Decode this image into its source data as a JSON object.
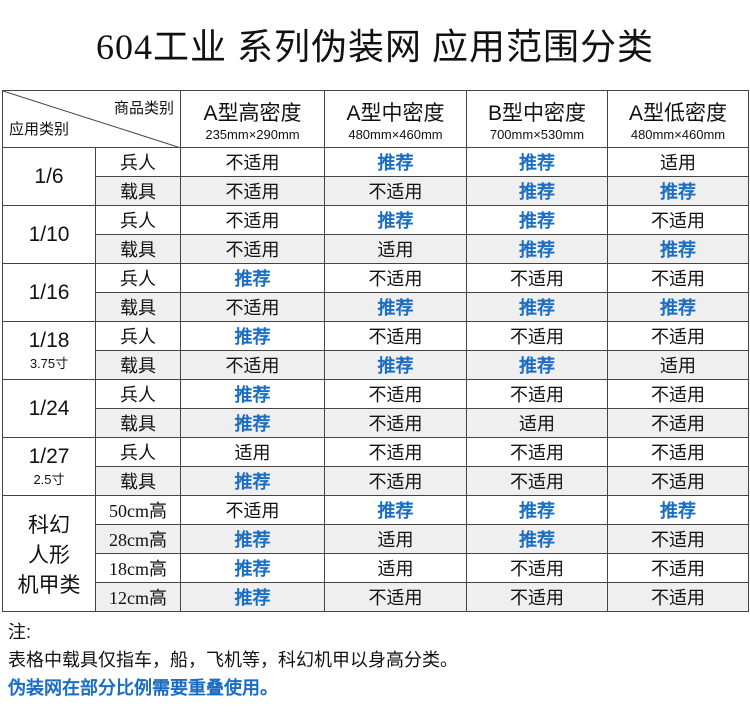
{
  "header": {
    "title": "604工业  系列伪装网  应用范围分类"
  },
  "table": {
    "corner_top": "商品类别",
    "corner_bottom": "应用类别",
    "columns": [
      {
        "name": "A型高密度",
        "size": "235mm×290mm"
      },
      {
        "name": "A型中密度",
        "size": "480mm×460mm"
      },
      {
        "name": "B型中密度",
        "size": "700mm×530mm"
      },
      {
        "name": "A型低密度",
        "size": "480mm×460mm"
      }
    ],
    "groups": [
      {
        "label": [
          "1/6"
        ],
        "rows": [
          {
            "sub": "兵人",
            "cells": [
              {
                "text": "不适用",
                "highlight": false
              },
              {
                "text": "推荐",
                "highlight": true
              },
              {
                "text": "推荐",
                "highlight": true
              },
              {
                "text": "适用",
                "highlight": false
              }
            ]
          },
          {
            "sub": "载具",
            "cells": [
              {
                "text": "不适用",
                "highlight": false
              },
              {
                "text": "不适用",
                "highlight": false
              },
              {
                "text": "推荐",
                "highlight": true
              },
              {
                "text": "推荐",
                "highlight": true
              }
            ]
          }
        ]
      },
      {
        "label": [
          "1/10"
        ],
        "rows": [
          {
            "sub": "兵人",
            "cells": [
              {
                "text": "不适用",
                "highlight": false
              },
              {
                "text": "推荐",
                "highlight": true
              },
              {
                "text": "推荐",
                "highlight": true
              },
              {
                "text": "不适用",
                "highlight": false
              }
            ]
          },
          {
            "sub": "载具",
            "cells": [
              {
                "text": "不适用",
                "highlight": false
              },
              {
                "text": "适用",
                "highlight": false
              },
              {
                "text": "推荐",
                "highlight": true
              },
              {
                "text": "推荐",
                "highlight": true
              }
            ]
          }
        ]
      },
      {
        "label": [
          "1/16"
        ],
        "rows": [
          {
            "sub": "兵人",
            "cells": [
              {
                "text": "推荐",
                "highlight": true
              },
              {
                "text": "不适用",
                "highlight": false
              },
              {
                "text": "不适用",
                "highlight": false
              },
              {
                "text": "不适用",
                "highlight": false
              }
            ]
          },
          {
            "sub": "载具",
            "cells": [
              {
                "text": "不适用",
                "highlight": false
              },
              {
                "text": "推荐",
                "highlight": true
              },
              {
                "text": "推荐",
                "highlight": true
              },
              {
                "text": "推荐",
                "highlight": true
              }
            ]
          }
        ]
      },
      {
        "label": [
          "1/18"
        ],
        "sublabel": "3.75寸",
        "rows": [
          {
            "sub": "兵人",
            "cells": [
              {
                "text": "推荐",
                "highlight": true
              },
              {
                "text": "不适用",
                "highlight": false
              },
              {
                "text": "不适用",
                "highlight": false
              },
              {
                "text": "不适用",
                "highlight": false
              }
            ]
          },
          {
            "sub": "载具",
            "cells": [
              {
                "text": "不适用",
                "highlight": false
              },
              {
                "text": "推荐",
                "highlight": true
              },
              {
                "text": "推荐",
                "highlight": true
              },
              {
                "text": "适用",
                "highlight": false
              }
            ]
          }
        ]
      },
      {
        "label": [
          "1/24"
        ],
        "rows": [
          {
            "sub": "兵人",
            "cells": [
              {
                "text": "推荐",
                "highlight": true
              },
              {
                "text": "不适用",
                "highlight": false
              },
              {
                "text": "不适用",
                "highlight": false
              },
              {
                "text": "不适用",
                "highlight": false
              }
            ]
          },
          {
            "sub": "载具",
            "cells": [
              {
                "text": "推荐",
                "highlight": true
              },
              {
                "text": "不适用",
                "highlight": false
              },
              {
                "text": "适用",
                "highlight": false
              },
              {
                "text": "不适用",
                "highlight": false
              }
            ]
          }
        ]
      },
      {
        "label": [
          "1/27"
        ],
        "sublabel": "2.5寸",
        "rows": [
          {
            "sub": "兵人",
            "cells": [
              {
                "text": "适用",
                "highlight": false
              },
              {
                "text": "不适用",
                "highlight": false
              },
              {
                "text": "不适用",
                "highlight": false
              },
              {
                "text": "不适用",
                "highlight": false
              }
            ]
          },
          {
            "sub": "载具",
            "cells": [
              {
                "text": "推荐",
                "highlight": true
              },
              {
                "text": "不适用",
                "highlight": false
              },
              {
                "text": "不适用",
                "highlight": false
              },
              {
                "text": "不适用",
                "highlight": false
              }
            ]
          }
        ]
      },
      {
        "label": [
          "科幻",
          "人形",
          "机甲类"
        ],
        "serif_sub": true,
        "rows": [
          {
            "sub": "50cm高",
            "cells": [
              {
                "text": "不适用",
                "highlight": false
              },
              {
                "text": "推荐",
                "highlight": true
              },
              {
                "text": "推荐",
                "highlight": true
              },
              {
                "text": "推荐",
                "highlight": true
              }
            ]
          },
          {
            "sub": "28cm高",
            "cells": [
              {
                "text": "推荐",
                "highlight": true
              },
              {
                "text": "适用",
                "highlight": false
              },
              {
                "text": "推荐",
                "highlight": true
              },
              {
                "text": "不适用",
                "highlight": false
              }
            ]
          },
          {
            "sub": "18cm高",
            "cells": [
              {
                "text": "推荐",
                "highlight": true
              },
              {
                "text": "适用",
                "highlight": false
              },
              {
                "text": "不适用",
                "highlight": false
              },
              {
                "text": "不适用",
                "highlight": false
              }
            ]
          },
          {
            "sub": "12cm高",
            "cells": [
              {
                "text": "推荐",
                "highlight": true
              },
              {
                "text": "不适用",
                "highlight": false
              },
              {
                "text": "不适用",
                "highlight": false
              },
              {
                "text": "不适用",
                "highlight": false
              }
            ]
          }
        ]
      }
    ]
  },
  "notes": {
    "heading": "注:",
    "line1": "表格中载具仅指车，船，飞机等，科幻机甲以身高分类。",
    "line2": "伪装网在部分比例需要重叠使用。"
  }
}
